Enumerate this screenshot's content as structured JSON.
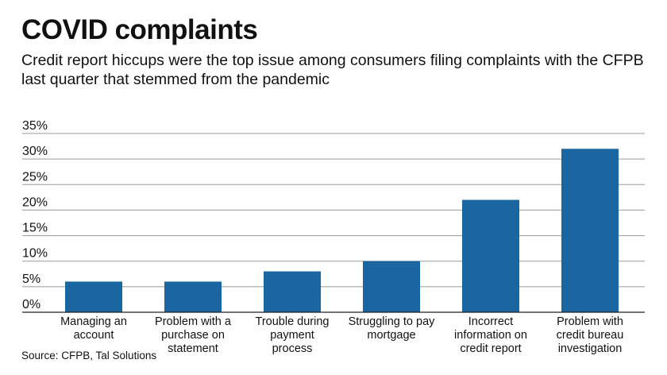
{
  "header": {
    "title": "COVID complaints",
    "subtitle": "Credit report hiccups were the top issue among consumers filing complaints with the CFPB last quarter that stemmed from the pandemic"
  },
  "footer": {
    "source": "Source: CFPB, Tal Solutions"
  },
  "colors": {
    "bar": "#1a66a0",
    "grid": "#999999",
    "axis": "#222222"
  },
  "chart_data": {
    "type": "bar",
    "title": "COVID complaints",
    "xlabel": "",
    "ylabel": "",
    "ylim": [
      0,
      35
    ],
    "yticks": [
      "0%",
      "5%",
      "10%",
      "15%",
      "20%",
      "25%",
      "30%",
      "35%"
    ],
    "grid": true,
    "categories": [
      [
        "Managing an",
        "account"
      ],
      [
        "Problem with a",
        "purchase on",
        "statement"
      ],
      [
        "Trouble during",
        "payment",
        "process"
      ],
      [
        "Struggling to pay",
        "mortgage"
      ],
      [
        "Incorrect",
        "information on",
        "credit report"
      ],
      [
        "Problem with",
        "credit bureau",
        "investigation"
      ]
    ],
    "values": [
      6,
      6,
      8,
      10,
      22,
      32
    ]
  }
}
